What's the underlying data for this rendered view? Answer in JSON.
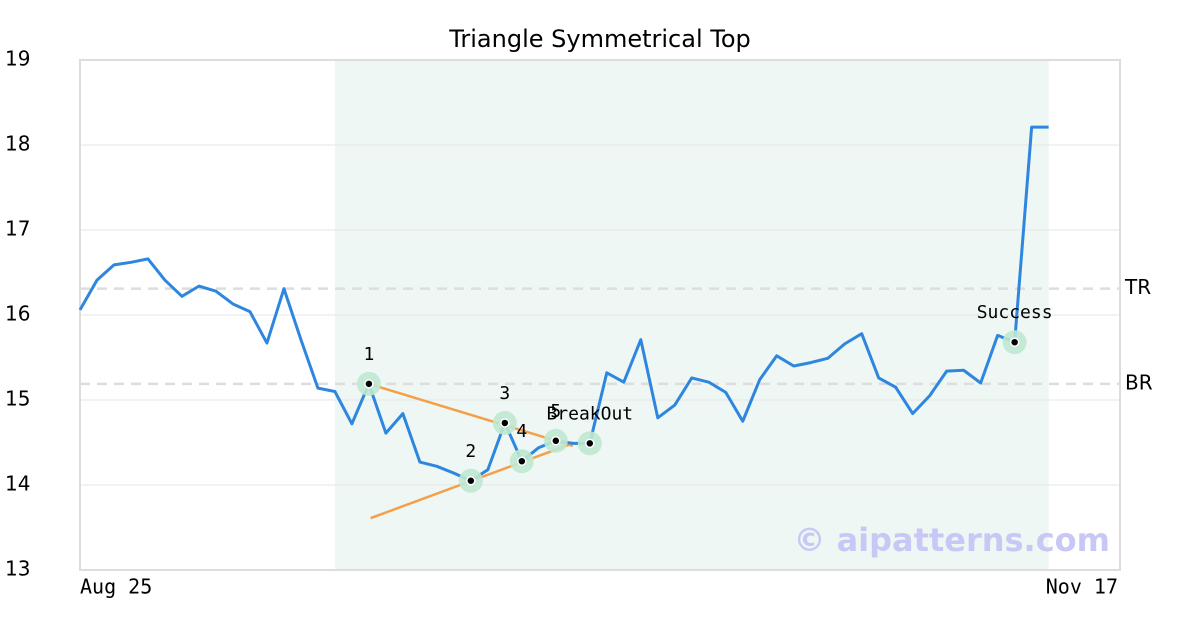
{
  "chart_data": {
    "type": "line",
    "title": "Triangle Symmetrical Top",
    "x": [
      0,
      1,
      2,
      3,
      4,
      5,
      6,
      7,
      8,
      9,
      10,
      11,
      12,
      13,
      14,
      15,
      16,
      17,
      18,
      19,
      20,
      21,
      22,
      23,
      24,
      25,
      26,
      27,
      28,
      29,
      30,
      31,
      32,
      33,
      34,
      35,
      36,
      37,
      38,
      39,
      40,
      41,
      42,
      43,
      44,
      45,
      46,
      47,
      48,
      49,
      50,
      51,
      52,
      53,
      54,
      55,
      56,
      57
    ],
    "series": [
      {
        "color": "#2e86de",
        "values": [
          16.06,
          16.41,
          16.59,
          16.62,
          16.66,
          16.41,
          16.22,
          16.34,
          16.28,
          16.13,
          16.04,
          15.67,
          16.31,
          15.71,
          15.14,
          15.1,
          14.72,
          15.19,
          14.61,
          14.84,
          14.27,
          14.22,
          14.14,
          14.05,
          14.18,
          14.73,
          14.28,
          14.44,
          14.52,
          14.49,
          14.49,
          15.32,
          15.21,
          15.71,
          14.79,
          14.94,
          15.26,
          15.21,
          15.09,
          14.75,
          15.24,
          15.52,
          15.4,
          15.44,
          15.49,
          15.66,
          15.78,
          15.26,
          15.15,
          14.84,
          15.05,
          15.34,
          15.35,
          15.2,
          15.76,
          15.68,
          18.21,
          18.21
        ]
      }
    ],
    "xlim": [
      0,
      61.2
    ],
    "xticks": [
      {
        "value": 0,
        "label": "Aug 25"
      },
      {
        "value": 61.2,
        "label": "Nov 17"
      }
    ],
    "ylim": [
      13,
      19
    ],
    "yticks": [
      13,
      14,
      15,
      16,
      17,
      18,
      19
    ],
    "grid": true,
    "highlight_range": [
      15,
      57
    ],
    "highlight_color": "#eef7f3",
    "reference_lines": [
      {
        "label": "TR",
        "value": 16.31
      },
      {
        "label": "BR",
        "value": 15.19
      }
    ],
    "trend_lines": [
      {
        "color": "#f4a04a",
        "x": [
          17,
          29
        ],
        "y": [
          15.19,
          14.46
        ]
      },
      {
        "color": "#f4a04a",
        "x": [
          17.1,
          29
        ],
        "y": [
          13.61,
          14.49
        ]
      }
    ],
    "patterns": [
      {
        "label": "1",
        "x": 17,
        "y": 15.19
      },
      {
        "label": "2",
        "x": 23,
        "y": 14.05
      },
      {
        "label": "3",
        "x": 25,
        "y": 14.73
      },
      {
        "label": "4",
        "x": 26,
        "y": 14.28
      },
      {
        "label": "5",
        "x": 28,
        "y": 14.52
      },
      {
        "label": "BreakOut",
        "x": 30,
        "y": 14.49
      },
      {
        "label": "Success",
        "x": 55,
        "y": 15.68
      }
    ],
    "watermark": "© aipatterns.com"
  }
}
